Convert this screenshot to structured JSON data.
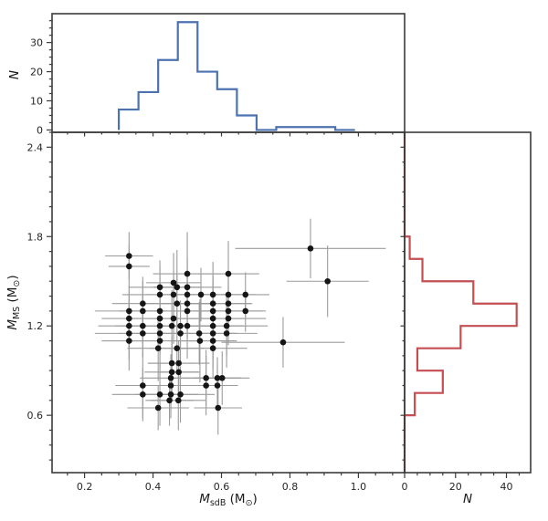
{
  "figure": {
    "background": "#ffffff",
    "spine_color": "#3b3b3b",
    "tick_color": "#3b3b3b",
    "tick_label_color": "#262626",
    "axis_label_color": "#1a1a1a",
    "tick_label_size": 11,
    "axis_label_size": 13.5
  },
  "chart_data": {
    "type": "scatter-with-marginal-histograms",
    "top_histogram": {
      "type": "bar",
      "histtype": "step",
      "orientation": "vertical",
      "color": "#4C72B0",
      "line_width": 2.2,
      "bin_edges": [
        0.3,
        0.3575,
        0.415,
        0.4725,
        0.53,
        0.5875,
        0.645,
        0.7025,
        0.76,
        0.8175,
        0.875,
        0.9325,
        0.99
      ],
      "counts": [
        7,
        13,
        24,
        37,
        20,
        14,
        5,
        0,
        1,
        1,
        1,
        0
      ],
      "ylabel": "N",
      "yticks": [
        0,
        10,
        20,
        30
      ],
      "ytick_labels": [
        "0",
        "10",
        "20",
        "30"
      ],
      "minor_ytick_step": 2.5,
      "ylim": [
        -0.8,
        39.9
      ],
      "grid": false
    },
    "scatter": {
      "type": "scatter",
      "marker": "filled-circle",
      "marker_color": "#151515",
      "marker_radius": 3.3,
      "errorbar_color": "#9b9b9b",
      "errorbar_width": 1.1,
      "xlabel_parts": [
        {
          "t": "M",
          "s": "i"
        },
        {
          "t": "sdB",
          "s": "sub"
        },
        {
          "t": " (M",
          "s": "n"
        },
        {
          "t": "⊙",
          "s": "sub"
        },
        {
          "t": ")",
          "s": "n"
        }
      ],
      "ylabel_parts": [
        {
          "t": "M",
          "s": "i"
        },
        {
          "t": "MS",
          "s": "sub"
        },
        {
          "t": " (M",
          "s": "n"
        },
        {
          "t": "⊙",
          "s": "sub"
        },
        {
          "t": ")",
          "s": "n"
        }
      ],
      "xlim": [
        0.105,
        1.135
      ],
      "ylim": [
        0.215,
        2.5
      ],
      "xticks": [
        0.2,
        0.4,
        0.6,
        0.8,
        1.0
      ],
      "xtick_labels": [
        "0.2",
        "0.4",
        "0.6",
        "0.8",
        "1.0"
      ],
      "yticks": [
        0.6,
        1.2,
        1.8,
        2.4
      ],
      "ytick_labels": [
        "0.6",
        "1.2",
        "1.8",
        "2.4"
      ],
      "minor_xtick_step": 0.05,
      "minor_ytick_step": 0.1,
      "grid": false,
      "points_format": [
        "M_sdB",
        "M_MS",
        "xerr",
        "yerr"
      ],
      "points": [
        [
          0.86,
          1.72,
          0.22,
          0.2
        ],
        [
          0.33,
          1.67,
          0.07,
          0.16
        ],
        [
          0.33,
          1.6,
          0.06,
          0.15
        ],
        [
          0.5,
          1.55,
          0.1,
          0.28
        ],
        [
          0.62,
          1.55,
          0.09,
          0.22
        ],
        [
          0.46,
          1.49,
          0.08,
          0.2
        ],
        [
          0.91,
          1.5,
          0.12,
          0.24
        ],
        [
          0.42,
          1.46,
          0.09,
          0.18
        ],
        [
          0.47,
          1.46,
          0.07,
          0.25
        ],
        [
          0.5,
          1.46,
          0.1,
          0.2
        ],
        [
          0.42,
          1.41,
          0.11,
          0.2
        ],
        [
          0.46,
          1.41,
          0.08,
          0.16
        ],
        [
          0.5,
          1.41,
          0.09,
          0.26
        ],
        [
          0.54,
          1.41,
          0.07,
          0.18
        ],
        [
          0.575,
          1.41,
          0.1,
          0.22
        ],
        [
          0.62,
          1.41,
          0.08,
          0.17
        ],
        [
          0.67,
          1.41,
          0.07,
          0.15
        ],
        [
          0.37,
          1.35,
          0.09,
          0.18
        ],
        [
          0.47,
          1.35,
          0.1,
          0.2
        ],
        [
          0.5,
          1.35,
          0.08,
          0.24
        ],
        [
          0.575,
          1.35,
          0.11,
          0.19
        ],
        [
          0.62,
          1.35,
          0.07,
          0.16
        ],
        [
          0.33,
          1.3,
          0.1,
          0.17
        ],
        [
          0.37,
          1.3,
          0.07,
          0.2
        ],
        [
          0.42,
          1.3,
          0.09,
          0.22
        ],
        [
          0.5,
          1.3,
          0.12,
          0.18
        ],
        [
          0.575,
          1.3,
          0.08,
          0.21
        ],
        [
          0.62,
          1.3,
          0.1,
          0.16
        ],
        [
          0.67,
          1.3,
          0.06,
          0.14
        ],
        [
          0.33,
          1.25,
          0.08,
          0.19
        ],
        [
          0.42,
          1.25,
          0.1,
          0.23
        ],
        [
          0.46,
          1.25,
          0.07,
          0.17
        ],
        [
          0.575,
          1.25,
          0.09,
          0.2
        ],
        [
          0.62,
          1.25,
          0.11,
          0.18
        ],
        [
          0.33,
          1.2,
          0.09,
          0.16
        ],
        [
          0.37,
          1.2,
          0.08,
          0.21
        ],
        [
          0.42,
          1.2,
          0.11,
          0.19
        ],
        [
          0.455,
          1.2,
          0.07,
          0.24
        ],
        [
          0.48,
          1.2,
          0.1,
          0.17
        ],
        [
          0.5,
          1.2,
          0.08,
          0.22
        ],
        [
          0.575,
          1.2,
          0.09,
          0.18
        ],
        [
          0.615,
          1.2,
          0.12,
          0.2
        ],
        [
          0.33,
          1.15,
          0.1,
          0.18
        ],
        [
          0.37,
          1.15,
          0.07,
          0.15
        ],
        [
          0.42,
          1.15,
          0.09,
          0.25
        ],
        [
          0.48,
          1.15,
          0.08,
          0.19
        ],
        [
          0.535,
          1.15,
          0.11,
          0.21
        ],
        [
          0.575,
          1.15,
          0.07,
          0.17
        ],
        [
          0.615,
          1.15,
          0.09,
          0.23
        ],
        [
          0.33,
          1.1,
          0.08,
          0.2
        ],
        [
          0.42,
          1.1,
          0.1,
          0.18
        ],
        [
          0.537,
          1.1,
          0.09,
          0.28
        ],
        [
          0.575,
          1.1,
          0.07,
          0.19
        ],
        [
          0.78,
          1.09,
          0.18,
          0.17
        ],
        [
          0.415,
          1.05,
          0.09,
          0.22
        ],
        [
          0.47,
          1.05,
          0.08,
          0.17
        ],
        [
          0.575,
          1.05,
          0.1,
          0.2
        ],
        [
          0.455,
          0.95,
          0.07,
          0.18
        ],
        [
          0.475,
          0.95,
          0.09,
          0.15
        ],
        [
          0.455,
          0.89,
          0.08,
          0.2
        ],
        [
          0.475,
          0.89,
          0.06,
          0.17
        ],
        [
          0.452,
          0.85,
          0.09,
          0.16
        ],
        [
          0.555,
          0.85,
          0.1,
          0.19
        ],
        [
          0.588,
          0.85,
          0.07,
          0.14
        ],
        [
          0.602,
          0.85,
          0.08,
          0.18
        ],
        [
          0.37,
          0.8,
          0.08,
          0.22
        ],
        [
          0.452,
          0.8,
          0.07,
          0.17
        ],
        [
          0.555,
          0.8,
          0.09,
          0.2
        ],
        [
          0.588,
          0.8,
          0.06,
          0.15
        ],
        [
          0.37,
          0.74,
          0.09,
          0.18
        ],
        [
          0.42,
          0.74,
          0.07,
          0.21
        ],
        [
          0.452,
          0.74,
          0.08,
          0.16
        ],
        [
          0.48,
          0.74,
          0.1,
          0.19
        ],
        [
          0.448,
          0.7,
          0.07,
          0.17
        ],
        [
          0.474,
          0.7,
          0.08,
          0.2
        ],
        [
          0.415,
          0.65,
          0.09,
          0.15
        ],
        [
          0.59,
          0.65,
          0.07,
          0.18
        ]
      ]
    },
    "right_histogram": {
      "type": "bar",
      "histtype": "step",
      "orientation": "horizontal",
      "color": "#C44E52",
      "line_width": 2.2,
      "bin_edges": [
        0.6,
        0.75,
        0.9,
        1.05,
        1.2,
        1.35,
        1.5,
        1.65,
        1.8
      ],
      "counts": [
        4,
        15,
        5,
        22,
        44,
        27,
        7,
        2
      ],
      "xlabel": "N",
      "xticks": [
        0,
        20,
        40
      ],
      "xtick_labels": [
        "0",
        "20",
        "40"
      ],
      "minor_xtick_step": 5,
      "xlim": [
        0,
        49.5
      ],
      "full_baseline": true,
      "grid": false
    }
  }
}
